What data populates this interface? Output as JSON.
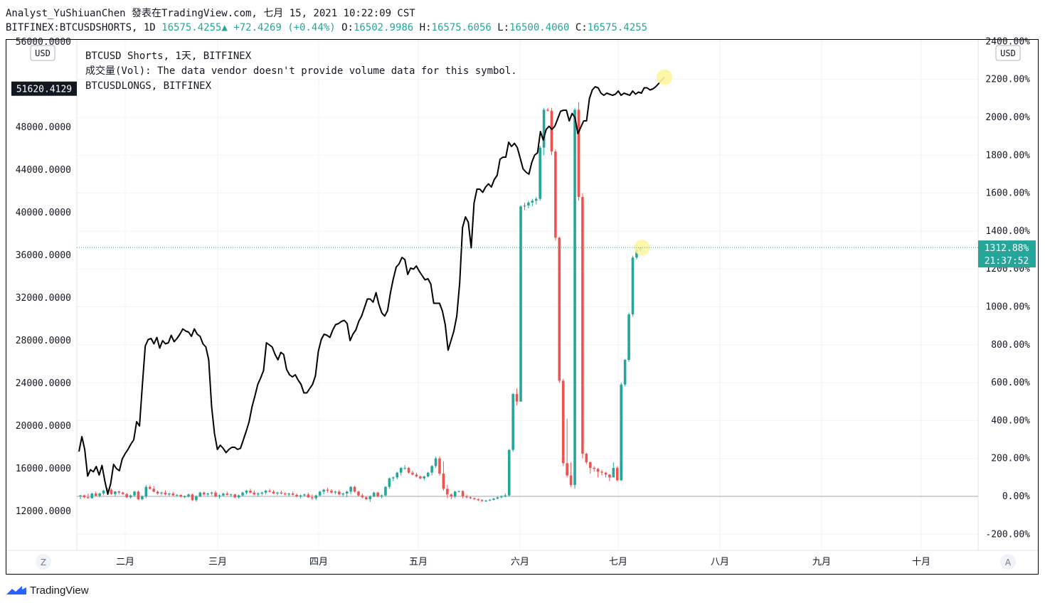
{
  "header": {
    "line1": "Analyst_YuShiuanChen 發表在TradingView.com, 七月 15, 2021 10:22:09 CST",
    "symbol": "BITFINEX:BTCUSDSHORTS, 1D",
    "last": "16575.4255",
    "change": "+72.4269",
    "change_pct": "(+0.44%)",
    "o_label": "O:",
    "o_value": "16502.9986",
    "h_label": "H:",
    "h_value": "16575.6056",
    "l_label": "L:",
    "l_value": "16500.4060",
    "c_label": "C:",
    "c_value": "16575.4255"
  },
  "legend": {
    "line1": "BTCUSD Shorts, 1天, BITFINEX",
    "line2": "成交量(Vol): The data vendor doesn't provide volume data for this symbol.",
    "line3": "BTCUSDLONGS, BITFINEX"
  },
  "brand": "TradingView",
  "colors": {
    "up": "#26a69a",
    "down": "#ef5350",
    "line": "#000000",
    "highlight": "#fff59d"
  },
  "chart_data": {
    "type": "line",
    "x_tick_labels": [
      "二月",
      "三月",
      "四月",
      "五月",
      "六月",
      "七月",
      "八月",
      "九月",
      "十月"
    ],
    "left_axis": {
      "unit": "USD",
      "tick_labels": [
        "56000.0000",
        "48000.0000",
        "44000.0000",
        "40000.0000",
        "36000.0000",
        "32000.0000",
        "28000.0000",
        "24000.0000",
        "20000.0000",
        "16000.0000",
        "12000.0000"
      ],
      "ticks": [
        56000,
        48000,
        44000,
        40000,
        36000,
        32000,
        28000,
        24000,
        20000,
        16000,
        12000
      ],
      "badge_label": "51620.4129",
      "badge_value": 51620.4129
    },
    "right_axis": {
      "unit": "USD",
      "tick_labels": [
        "2400.00%",
        "2200.00%",
        "2000.00%",
        "1800.00%",
        "1600.00%",
        "1400.00%",
        "1200.00%",
        "1000.00%",
        "800.00%",
        "600.00%",
        "400.00%",
        "200.00%",
        "0.00%",
        "-200.00%"
      ],
      "ticks": [
        2400,
        2200,
        2000,
        1800,
        1600,
        1400,
        1200,
        1000,
        800,
        600,
        400,
        200,
        0,
        -200
      ],
      "badge_label": "1312.88%",
      "badge_value": 1312.88,
      "countdown": "21:37:52"
    },
    "corner_buttons": {
      "left": "Z",
      "right": "A"
    },
    "series": [
      {
        "name": "BTCUSDLONGS",
        "axis": "left",
        "values": [
          17600,
          19000,
          17800,
          15300,
          15900,
          15700,
          16200,
          15400,
          16300,
          14800,
          13600,
          14600,
          16400,
          16000,
          15800,
          16900,
          17400,
          17800,
          18300,
          18700,
          20400,
          20000,
          23900,
          27500,
          28100,
          28200,
          27700,
          28300,
          27300,
          28000,
          27700,
          27800,
          28500,
          27900,
          28200,
          28600,
          29100,
          28900,
          28800,
          28400,
          29100,
          28600,
          28400,
          27700,
          27400,
          26200,
          21800,
          19300,
          17800,
          18200,
          17900,
          17500,
          17800,
          18000,
          18000,
          17800,
          17900,
          18700,
          19500,
          20400,
          21800,
          22800,
          23900,
          24500,
          25200,
          27800,
          27600,
          27400,
          26700,
          26200,
          26900,
          26700,
          25300,
          24800,
          24600,
          24800,
          24300,
          23900,
          23100,
          23100,
          23500,
          23900,
          24700,
          27000,
          28100,
          28600,
          28500,
          28300,
          29000,
          29500,
          29600,
          29800,
          29900,
          29600,
          28000,
          28600,
          29000,
          29800,
          30300,
          31100,
          31900,
          31900,
          31600,
          32500,
          31400,
          30600,
          30300,
          30800,
          32500,
          33800,
          34900,
          35200,
          35800,
          35600,
          34200,
          34800,
          34700,
          35000,
          34500,
          34100,
          33700,
          33800,
          33300,
          31500,
          31500,
          31500,
          30800,
          29500,
          27100,
          28000,
          28900,
          30300,
          33400,
          38600,
          39600,
          39100,
          36700,
          40900,
          42200,
          42200,
          41900,
          42400,
          42700,
          42400,
          43100,
          43500,
          45000,
          45200,
          45200,
          46600,
          46200,
          46500,
          46100,
          45100,
          44100,
          43800,
          43600,
          44700,
          45400,
          45600,
          47600,
          46800,
          47800,
          48100,
          47800,
          48100,
          48800,
          49500,
          49600,
          49600,
          48600,
          49300,
          48900,
          47400,
          48000,
          48600,
          48600,
          50700,
          51500,
          51800,
          51700,
          51200,
          51000,
          51200,
          51100,
          51000,
          51100,
          51400,
          51000,
          51200,
          51100,
          51000,
          51400,
          51100,
          51300,
          51200,
          51700,
          51700,
          51500,
          51600,
          51800,
          52100,
          52400,
          52700
        ]
      },
      {
        "name": "BTCUSD Shorts",
        "axis": "right",
        "ohlc": [
          [
            5,
            -15,
            8,
            5
          ],
          [
            5,
            -10,
            10,
            -5
          ],
          [
            -5,
            -12,
            15,
            -10
          ],
          [
            -10,
            -12,
            20,
            15
          ],
          [
            15,
            2,
            25,
            3
          ],
          [
            3,
            -5,
            20,
            15
          ],
          [
            15,
            5,
            35,
            30
          ],
          [
            30,
            15,
            45,
            35
          ],
          [
            35,
            8,
            42,
            12
          ],
          [
            12,
            2,
            28,
            26
          ],
          [
            26,
            10,
            30,
            20
          ],
          [
            20,
            8,
            25,
            12
          ],
          [
            12,
            -10,
            18,
            -5
          ],
          [
            -5,
            -12,
            10,
            5
          ],
          [
            5,
            -2,
            30,
            25
          ],
          [
            25,
            -20,
            30,
            -15
          ],
          [
            -15,
            -22,
            5,
            0
          ],
          [
            0,
            -10,
            60,
            50
          ],
          [
            50,
            35,
            58,
            40
          ],
          [
            40,
            20,
            55,
            25
          ],
          [
            25,
            8,
            30,
            15
          ],
          [
            15,
            5,
            25,
            20
          ],
          [
            20,
            5,
            32,
            10
          ],
          [
            10,
            2,
            20,
            15
          ],
          [
            15,
            3,
            25,
            5
          ],
          [
            5,
            -2,
            12,
            8
          ],
          [
            8,
            -5,
            10,
            -2
          ],
          [
            -2,
            -10,
            5,
            0
          ],
          [
            0,
            -6,
            15,
            10
          ],
          [
            10,
            -25,
            15,
            -20
          ],
          [
            -20,
            -28,
            5,
            0
          ],
          [
            0,
            -5,
            25,
            20
          ],
          [
            20,
            5,
            25,
            10
          ],
          [
            10,
            2,
            20,
            15
          ],
          [
            15,
            5,
            25,
            20
          ],
          [
            20,
            -5,
            30,
            0
          ],
          [
            0,
            -12,
            10,
            5
          ],
          [
            5,
            0,
            20,
            15
          ],
          [
            15,
            5,
            25,
            8
          ],
          [
            8,
            -2,
            15,
            10
          ],
          [
            10,
            -10,
            15,
            -5
          ],
          [
            -5,
            -12,
            10,
            5
          ],
          [
            5,
            0,
            25,
            20
          ],
          [
            20,
            10,
            35,
            30
          ],
          [
            30,
            15,
            40,
            20
          ],
          [
            20,
            5,
            30,
            10
          ],
          [
            10,
            0,
            22,
            15
          ],
          [
            15,
            5,
            25,
            20
          ],
          [
            20,
            10,
            35,
            30
          ],
          [
            30,
            20,
            40,
            25
          ],
          [
            25,
            12,
            33,
            15
          ],
          [
            15,
            5,
            25,
            20
          ],
          [
            20,
            10,
            30,
            15
          ],
          [
            15,
            5,
            22,
            10
          ],
          [
            10,
            0,
            20,
            15
          ],
          [
            15,
            5,
            25,
            8
          ],
          [
            8,
            -5,
            15,
            0
          ],
          [
            0,
            -10,
            10,
            5
          ],
          [
            5,
            -2,
            15,
            10
          ],
          [
            10,
            -8,
            20,
            -5
          ],
          [
            -5,
            -18,
            10,
            -10
          ],
          [
            -10,
            -20,
            10,
            5
          ],
          [
            5,
            -2,
            30,
            25
          ],
          [
            25,
            10,
            40,
            35
          ],
          [
            35,
            20,
            45,
            30
          ],
          [
            30,
            15,
            38,
            20
          ],
          [
            20,
            10,
            30,
            25
          ],
          [
            25,
            5,
            35,
            10
          ],
          [
            10,
            0,
            20,
            15
          ],
          [
            15,
            -5,
            30,
            25
          ],
          [
            25,
            10,
            55,
            50
          ],
          [
            50,
            20,
            55,
            25
          ],
          [
            25,
            0,
            30,
            5
          ],
          [
            5,
            -10,
            15,
            -5
          ],
          [
            -5,
            -20,
            0,
            -15
          ],
          [
            -15,
            -30,
            5,
            0
          ],
          [
            0,
            -5,
            25,
            20
          ],
          [
            20,
            -5,
            25,
            0
          ],
          [
            0,
            -10,
            10,
            5
          ],
          [
            5,
            0,
            55,
            50
          ],
          [
            50,
            40,
            100,
            95
          ],
          [
            95,
            80,
            105,
            100
          ],
          [
            100,
            90,
            130,
            125
          ],
          [
            125,
            110,
            155,
            150
          ],
          [
            150,
            140,
            165,
            150
          ],
          [
            150,
            120,
            155,
            125
          ],
          [
            125,
            110,
            135,
            115
          ],
          [
            115,
            100,
            125,
            105
          ],
          [
            105,
            90,
            110,
            95
          ],
          [
            95,
            85,
            110,
            105
          ],
          [
            105,
            100,
            130,
            125
          ],
          [
            125,
            110,
            165,
            160
          ],
          [
            160,
            150,
            210,
            200
          ],
          [
            200,
            110,
            210,
            120
          ],
          [
            120,
            30,
            185,
            40
          ],
          [
            40,
            -10,
            60,
            10
          ],
          [
            10,
            -15,
            15,
            0
          ],
          [
            0,
            -10,
            30,
            25
          ],
          [
            25,
            20,
            30,
            28
          ],
          [
            28,
            -10,
            32,
            0
          ],
          [
            0,
            -12,
            10,
            -5
          ],
          [
            -5,
            -15,
            0,
            -10
          ],
          [
            -10,
            -20,
            -5,
            -15
          ],
          [
            -15,
            -25,
            -10,
            -20
          ],
          [
            -20,
            -28,
            -15,
            -25
          ],
          [
            -25,
            -30,
            -18,
            -22
          ],
          [
            -22,
            -25,
            -15,
            -18
          ],
          [
            -18,
            -22,
            -8,
            -12
          ],
          [
            -12,
            -15,
            -2,
            -5
          ],
          [
            -5,
            -10,
            5,
            0
          ],
          [
            0,
            -5,
            15,
            5
          ],
          [
            5,
            0,
            250,
            245
          ],
          [
            245,
            235,
            545,
            540
          ],
          [
            540,
            480,
            570,
            500
          ],
          [
            500,
            500,
            1535,
            1530
          ],
          [
            1530,
            1510,
            1550,
            1535
          ],
          [
            1535,
            1520,
            1560,
            1550
          ],
          [
            1550,
            1530,
            1570,
            1560
          ],
          [
            1560,
            1540,
            1580,
            1570
          ],
          [
            1570,
            1560,
            1850,
            1840
          ],
          [
            1840,
            1800,
            2050,
            2040
          ],
          [
            2040,
            2030,
            2050,
            2035
          ],
          [
            2035,
            1800,
            2050,
            1820
          ],
          [
            1820,
            1350,
            1830,
            1365
          ],
          [
            1365,
            600,
            1370,
            610
          ],
          [
            610,
            160,
            620,
            175
          ],
          [
            175,
            100,
            410,
            110
          ],
          [
            110,
            50,
            180,
            60
          ],
          [
            60,
            40,
            2050,
            2040
          ],
          [
            2040,
            1560,
            2080,
            1580
          ],
          [
            1580,
            200,
            1600,
            225
          ],
          [
            225,
            170,
            230,
            180
          ],
          [
            180,
            120,
            185,
            150
          ],
          [
            150,
            130,
            160,
            145
          ],
          [
            145,
            100,
            150,
            130
          ],
          [
            130,
            110,
            140,
            125
          ],
          [
            125,
            100,
            130,
            115
          ],
          [
            115,
            80,
            118,
            100
          ],
          [
            100,
            100,
            180,
            150
          ],
          [
            150,
            80,
            160,
            85
          ],
          [
            85,
            80,
            600,
            590
          ],
          [
            590,
            580,
            725,
            720
          ],
          [
            720,
            710,
            970,
            960
          ],
          [
            960,
            950,
            1270,
            1260
          ],
          [
            1260,
            1250,
            1310,
            1300
          ],
          [
            1300,
            1290,
            1315,
            1312.88
          ]
        ]
      }
    ]
  }
}
